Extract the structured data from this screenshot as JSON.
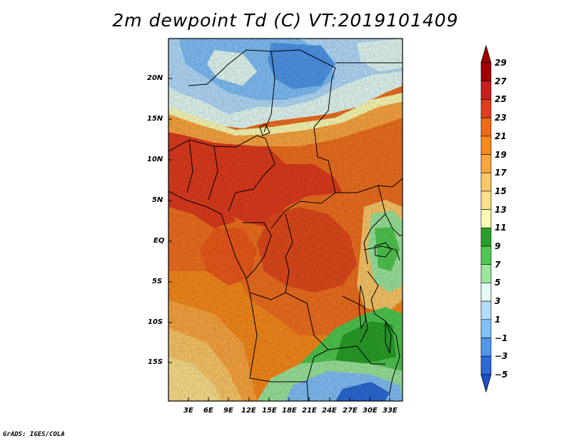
{
  "title": "2m dewpoint Td (C) VT:2019101409",
  "credit": "GrADS: IGES/COLA",
  "map": {
    "lat_labels": [
      "20N",
      "15N",
      "10N",
      "5N",
      "EQ",
      "5S",
      "10S",
      "15S"
    ],
    "lon_labels": [
      "3E",
      "6E",
      "9E",
      "12E",
      "15E",
      "18E",
      "21E",
      "24E",
      "27E",
      "30E",
      "33E"
    ]
  },
  "colorbar": {
    "labels": [
      "29",
      "27",
      "25",
      "23",
      "21",
      "19",
      "17",
      "15",
      "13",
      "11",
      "9",
      "7",
      "5",
      "3",
      "1",
      "−1",
      "−3",
      "−5"
    ],
    "colors": [
      "#a00000",
      "#c81e1e",
      "#e03c1e",
      "#ee6a18",
      "#f88a1c",
      "#fca640",
      "#fcc868",
      "#fce08c",
      "#fcfcb4",
      "#2aa02a",
      "#50c850",
      "#9ce69c",
      "#e4faf4",
      "#b4dcfc",
      "#82c0f8",
      "#5096ea",
      "#2c6ad6",
      "#1e50c8"
    ]
  }
}
